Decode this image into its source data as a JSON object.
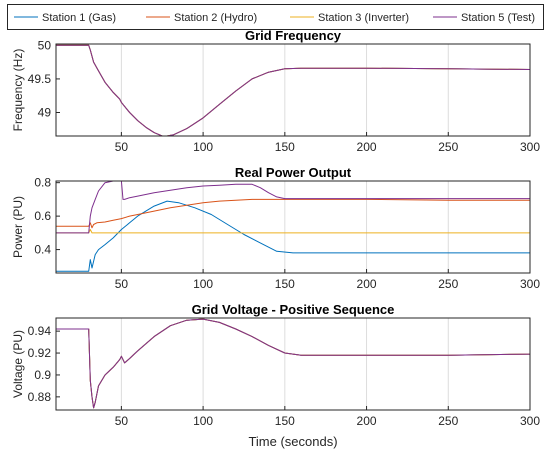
{
  "legend": {
    "entries": [
      {
        "label": "Station 1 (Gas)",
        "color": "#0072BD"
      },
      {
        "label": "Station 2 (Hydro)",
        "color": "#D95319"
      },
      {
        "label": "Station 3 (Inverter)",
        "color": "#EDB120"
      },
      {
        "label": "Station 5 (Test)",
        "color": "#7E2F8E"
      }
    ]
  },
  "shared_xlabel": "Time (seconds)",
  "chart_data": [
    {
      "type": "line",
      "title": "Grid Frequency",
      "xlabel": "",
      "ylabel": "Frequency (Hz)",
      "xlim": [
        10,
        300
      ],
      "ylim": [
        48.65,
        50.02
      ],
      "xticks": [
        50,
        100,
        150,
        200,
        250,
        300
      ],
      "yticks": [
        49,
        49.5,
        50
      ],
      "ytick_labels": [
        "49",
        "49.5",
        "50"
      ],
      "grid": "vertical",
      "series": [
        {
          "name": "Station 1 (Gas)",
          "color": "#0072BD",
          "x": [
            10,
            30,
            31,
            33,
            36,
            40,
            45,
            49,
            50,
            51,
            55,
            60,
            65,
            70,
            75,
            78,
            82,
            90,
            100,
            110,
            120,
            130,
            140,
            150,
            160,
            180,
            200,
            250,
            300
          ],
          "y": [
            50,
            50,
            49.93,
            49.75,
            49.62,
            49.45,
            49.3,
            49.2,
            49.15,
            49.12,
            49,
            48.88,
            48.78,
            48.7,
            48.65,
            48.65,
            48.67,
            48.76,
            48.92,
            49.12,
            49.32,
            49.5,
            49.6,
            49.65,
            49.66,
            49.66,
            49.66,
            49.65,
            49.64
          ]
        },
        {
          "name": "Station 2 (Hydro)",
          "color": "#D95319",
          "x": [
            10,
            30,
            31,
            33,
            36,
            40,
            45,
            49,
            50,
            51,
            55,
            60,
            65,
            70,
            75,
            78,
            82,
            90,
            100,
            110,
            120,
            130,
            140,
            150,
            160,
            180,
            200,
            250,
            300
          ],
          "y": [
            50,
            50,
            49.93,
            49.75,
            49.62,
            49.45,
            49.3,
            49.2,
            49.15,
            49.12,
            49,
            48.88,
            48.78,
            48.7,
            48.65,
            48.65,
            48.67,
            48.76,
            48.92,
            49.12,
            49.32,
            49.5,
            49.6,
            49.65,
            49.66,
            49.66,
            49.66,
            49.65,
            49.64
          ]
        },
        {
          "name": "Station 3 (Inverter)",
          "color": "#EDB120",
          "x": [
            10,
            30,
            31,
            33,
            36,
            40,
            45,
            49,
            50,
            51,
            55,
            60,
            65,
            70,
            75,
            78,
            82,
            90,
            100,
            110,
            120,
            130,
            140,
            150,
            160,
            180,
            200,
            250,
            300
          ],
          "y": [
            50,
            50,
            49.93,
            49.75,
            49.62,
            49.45,
            49.3,
            49.2,
            49.15,
            49.12,
            49,
            48.88,
            48.78,
            48.7,
            48.65,
            48.65,
            48.67,
            48.76,
            48.92,
            49.12,
            49.32,
            49.5,
            49.6,
            49.65,
            49.66,
            49.66,
            49.66,
            49.65,
            49.64
          ]
        },
        {
          "name": "Station 5 (Test)",
          "color": "#7E2F8E",
          "x": [
            10,
            30,
            31,
            33,
            36,
            40,
            45,
            49,
            50,
            51,
            55,
            60,
            65,
            70,
            75,
            78,
            82,
            90,
            100,
            110,
            120,
            130,
            140,
            150,
            160,
            180,
            200,
            250,
            300
          ],
          "y": [
            50,
            50,
            49.93,
            49.75,
            49.62,
            49.45,
            49.3,
            49.2,
            49.15,
            49.12,
            49,
            48.88,
            48.78,
            48.7,
            48.65,
            48.65,
            48.67,
            48.76,
            48.92,
            49.12,
            49.32,
            49.5,
            49.6,
            49.65,
            49.66,
            49.66,
            49.66,
            49.65,
            49.64
          ]
        }
      ]
    },
    {
      "type": "line",
      "title": "Real Power Output",
      "xlabel": "",
      "ylabel": "Power (PU)",
      "xlim": [
        10,
        300
      ],
      "ylim": [
        0.26,
        0.81
      ],
      "xticks": [
        50,
        100,
        150,
        200,
        250,
        300
      ],
      "yticks": [
        0.4,
        0.6,
        0.8
      ],
      "ytick_labels": [
        "0.4",
        "0.6",
        "0.8"
      ],
      "grid": "vertical",
      "series": [
        {
          "name": "Station 1 (Gas)",
          "color": "#0072BD",
          "x": [
            10,
            30,
            31,
            32,
            34,
            36,
            40,
            45,
            50,
            55,
            60,
            70,
            78,
            85,
            95,
            105,
            115,
            125,
            135,
            145,
            155,
            170,
            200,
            250,
            300
          ],
          "y": [
            0.27,
            0.27,
            0.34,
            0.29,
            0.37,
            0.4,
            0.43,
            0.47,
            0.52,
            0.56,
            0.6,
            0.66,
            0.69,
            0.68,
            0.65,
            0.61,
            0.55,
            0.49,
            0.44,
            0.39,
            0.38,
            0.38,
            0.38,
            0.38,
            0.38
          ]
        },
        {
          "name": "Station 2 (Hydro)",
          "color": "#D95319",
          "x": [
            10,
            30,
            31,
            32,
            33,
            35,
            40,
            45,
            50,
            55,
            60,
            70,
            80,
            90,
            100,
            110,
            120,
            130,
            140,
            150,
            200,
            250,
            300
          ],
          "y": [
            0.54,
            0.54,
            0.56,
            0.53,
            0.55,
            0.56,
            0.565,
            0.575,
            0.585,
            0.6,
            0.61,
            0.63,
            0.65,
            0.665,
            0.68,
            0.69,
            0.695,
            0.7,
            0.7,
            0.7,
            0.7,
            0.695,
            0.695
          ]
        },
        {
          "name": "Station 3 (Inverter)",
          "color": "#EDB120",
          "x": [
            10,
            30,
            31,
            32,
            33,
            300
          ],
          "y": [
            0.5,
            0.5,
            0.52,
            0.5,
            0.5,
            0.5
          ]
        },
        {
          "name": "Station 5 (Test)",
          "color": "#7E2F8E",
          "x": [
            10,
            30,
            31,
            32,
            34,
            36,
            40,
            45,
            49,
            50,
            51,
            52,
            55,
            60,
            70,
            80,
            90,
            100,
            110,
            120,
            125,
            130,
            135,
            140,
            145,
            150,
            200,
            250,
            300
          ],
          "y": [
            0.5,
            0.5,
            0.6,
            0.65,
            0.7,
            0.75,
            0.8,
            0.81,
            0.81,
            0.81,
            0.7,
            0.7,
            0.71,
            0.72,
            0.74,
            0.755,
            0.77,
            0.78,
            0.785,
            0.79,
            0.79,
            0.79,
            0.77,
            0.74,
            0.715,
            0.705,
            0.705,
            0.705,
            0.705
          ]
        }
      ]
    },
    {
      "type": "line",
      "title": "Grid Voltage - Positive Sequence",
      "xlabel": "Time (seconds)",
      "ylabel": "Voltage (PU)",
      "xlim": [
        10,
        300
      ],
      "ylim": [
        0.868,
        0.952
      ],
      "xticks": [
        50,
        100,
        150,
        200,
        250,
        300
      ],
      "yticks": [
        0.88,
        0.9,
        0.92,
        0.94
      ],
      "ytick_labels": [
        "0.88",
        "0.9",
        "0.92",
        "0.94"
      ],
      "grid": "vertical",
      "series": [
        {
          "name": "Station 1 (Gas)",
          "color": "#0072BD",
          "x": [
            10,
            30,
            31,
            32,
            33,
            34,
            36,
            40,
            45,
            49,
            50,
            52,
            55,
            60,
            70,
            80,
            90,
            100,
            110,
            120,
            130,
            140,
            150,
            160,
            180,
            200,
            250,
            300
          ],
          "y": [
            0.942,
            0.942,
            0.895,
            0.88,
            0.87,
            0.875,
            0.89,
            0.9,
            0.907,
            0.914,
            0.917,
            0.911,
            0.915,
            0.922,
            0.935,
            0.945,
            0.95,
            0.951,
            0.948,
            0.942,
            0.935,
            0.927,
            0.92,
            0.918,
            0.918,
            0.918,
            0.918,
            0.919
          ]
        },
        {
          "name": "Station 2 (Hydro)",
          "color": "#D95319",
          "x": [
            10,
            30,
            31,
            32,
            33,
            34,
            36,
            40,
            45,
            49,
            50,
            52,
            55,
            60,
            70,
            80,
            90,
            100,
            110,
            120,
            130,
            140,
            150,
            160,
            180,
            200,
            250,
            300
          ],
          "y": [
            0.942,
            0.942,
            0.895,
            0.88,
            0.87,
            0.875,
            0.89,
            0.9,
            0.907,
            0.914,
            0.917,
            0.911,
            0.915,
            0.922,
            0.935,
            0.945,
            0.95,
            0.951,
            0.948,
            0.942,
            0.935,
            0.927,
            0.92,
            0.918,
            0.918,
            0.918,
            0.918,
            0.919
          ]
        },
        {
          "name": "Station 3 (Inverter)",
          "color": "#EDB120",
          "x": [
            10,
            30,
            31,
            32,
            33,
            34,
            36,
            40,
            45,
            49,
            50,
            52,
            55,
            60,
            70,
            80,
            90,
            100,
            110,
            120,
            130,
            140,
            150,
            160,
            180,
            200,
            250,
            300
          ],
          "y": [
            0.942,
            0.942,
            0.895,
            0.88,
            0.87,
            0.875,
            0.89,
            0.9,
            0.907,
            0.914,
            0.917,
            0.911,
            0.915,
            0.922,
            0.935,
            0.945,
            0.95,
            0.951,
            0.948,
            0.942,
            0.935,
            0.927,
            0.92,
            0.918,
            0.918,
            0.918,
            0.918,
            0.919
          ]
        },
        {
          "name": "Station 5 (Test)",
          "color": "#7E2F8E",
          "x": [
            10,
            30,
            31,
            32,
            33,
            34,
            36,
            40,
            45,
            49,
            50,
            52,
            55,
            60,
            70,
            80,
            90,
            100,
            110,
            120,
            130,
            140,
            150,
            160,
            180,
            200,
            250,
            300
          ],
          "y": [
            0.942,
            0.942,
            0.895,
            0.88,
            0.87,
            0.875,
            0.89,
            0.9,
            0.907,
            0.914,
            0.917,
            0.911,
            0.915,
            0.922,
            0.935,
            0.945,
            0.95,
            0.951,
            0.948,
            0.942,
            0.935,
            0.927,
            0.92,
            0.918,
            0.918,
            0.918,
            0.918,
            0.919
          ]
        }
      ]
    }
  ]
}
